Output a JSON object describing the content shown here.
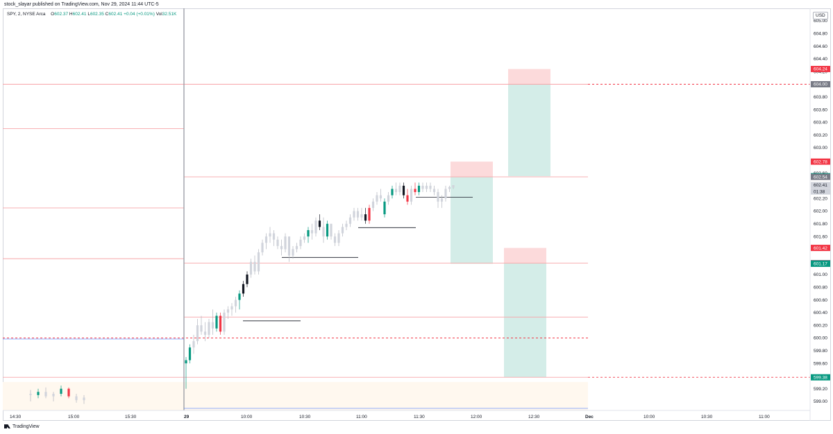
{
  "header": {
    "published_by": "stock_slayar published on TradingView.com, Nov 29, 2024 11:44 UTC-5"
  },
  "legend": {
    "symbol": "SPY, 2, NYSE Arca",
    "o_label": "O",
    "o_value": "602.37",
    "h_label": "H",
    "h_value": "602.41",
    "l_label": "L",
    "l_value": "602.35",
    "c_label": "C",
    "c_value": "602.41",
    "change": "+0.04 (+0.01%)",
    "vol_label": "Vol",
    "vol_value": "32.51K"
  },
  "currency": "USD",
  "footer": {
    "brand": "TradingView"
  },
  "colors": {
    "bull": "#089981",
    "bear": "#f23645",
    "neutral": "#d1d4dc",
    "level_line": "#f7a4a8",
    "target_fill": "#d4ede8",
    "stop_fill": "#fcdadb",
    "session_fill": "#fff8ef"
  },
  "chart_data": {
    "type": "candlestick",
    "symbol": "SPY",
    "interval": "2",
    "ylim": [
      598.9,
      605.0
    ],
    "x_ticks": [
      "14:30",
      "15:00",
      "15:30",
      "29",
      "10:00",
      "10:30",
      "11:00",
      "11:30",
      "12:00",
      "12:30",
      "Dec",
      "10:00",
      "10:30",
      "11:00"
    ],
    "y_ticks": [
      "599.00",
      "599.20",
      "599.40",
      "599.60",
      "599.80",
      "600.00",
      "600.20",
      "600.40",
      "600.60",
      "600.80",
      "601.00",
      "601.20",
      "601.40",
      "601.60",
      "601.80",
      "602.00",
      "602.20",
      "602.40",
      "602.60",
      "602.80",
      "603.00",
      "603.20",
      "603.40",
      "603.60",
      "603.80",
      "604.00",
      "604.20",
      "604.40",
      "604.60",
      "604.80",
      "605.00"
    ],
    "price_labels": [
      {
        "value": "604.24",
        "price": 604.24,
        "kind": "red"
      },
      {
        "value": "604.00",
        "price": 604.0,
        "kind": "grey"
      },
      {
        "value": "602.78",
        "price": 602.78,
        "kind": "red"
      },
      {
        "value": "602.55",
        "price": 602.55,
        "kind": "green"
      },
      {
        "value": "602.54",
        "price": 602.54,
        "kind": "grey"
      },
      {
        "value": "602.41",
        "price": 602.41,
        "kind": "current"
      },
      {
        "value": "01:38",
        "price": 602.31,
        "kind": "countdown"
      },
      {
        "value": "601.42",
        "price": 601.42,
        "kind": "red"
      },
      {
        "value": "601.18",
        "price": 601.18,
        "kind": "grey"
      },
      {
        "value": "601.17",
        "price": 601.17,
        "kind": "green"
      },
      {
        "value": "599.38",
        "price": 599.38,
        "kind": "green"
      }
    ],
    "levels": [
      {
        "price": 604.0,
        "style": "solid",
        "dashed_extension": true
      },
      {
        "price": 603.3,
        "style": "solid"
      },
      {
        "price": 602.54,
        "style": "solid"
      },
      {
        "price": 602.05,
        "style": "solid"
      },
      {
        "price": 601.25,
        "style": "solid"
      },
      {
        "price": 601.18,
        "style": "solid"
      },
      {
        "price": 600.33,
        "style": "solid"
      },
      {
        "price": 600.0,
        "style": "dashed"
      },
      {
        "price": 599.38,
        "style": "solid",
        "dashed_extension": true
      }
    ],
    "positions": [
      {
        "stop": 604.24,
        "entry": 604.0,
        "target": 602.55
      },
      {
        "stop": 602.78,
        "entry": 602.54,
        "target": 601.17
      },
      {
        "stop": 601.42,
        "entry": 601.18,
        "target": 599.38
      }
    ],
    "markers": [
      600.27,
      601.27,
      601.74,
      602.22
    ],
    "candles": [
      [
        599.6,
        599.7,
        599.2,
        599.65,
        "b"
      ],
      [
        599.65,
        599.9,
        599.6,
        599.85,
        "b"
      ],
      [
        599.85,
        600.05,
        599.75,
        599.95,
        "n"
      ],
      [
        599.95,
        600.3,
        599.9,
        600.2,
        "n"
      ],
      [
        600.2,
        600.35,
        600.05,
        600.1,
        "n"
      ],
      [
        600.1,
        600.25,
        599.95,
        600.05,
        "n"
      ],
      [
        600.05,
        600.3,
        600.0,
        600.25,
        "n"
      ],
      [
        600.25,
        600.45,
        600.05,
        600.15,
        "n"
      ],
      [
        600.15,
        600.4,
        600.1,
        600.35,
        "b"
      ],
      [
        600.35,
        600.4,
        600.05,
        600.1,
        "r"
      ],
      [
        600.1,
        600.45,
        600.05,
        600.4,
        "n"
      ],
      [
        600.4,
        600.5,
        600.3,
        600.45,
        "n"
      ],
      [
        600.45,
        600.55,
        600.35,
        600.5,
        "n"
      ],
      [
        600.5,
        600.65,
        600.4,
        600.6,
        "n"
      ],
      [
        600.6,
        600.75,
        600.45,
        600.7,
        "b"
      ],
      [
        600.7,
        600.9,
        600.65,
        600.85,
        "k"
      ],
      [
        600.85,
        601.05,
        600.8,
        601.0,
        "k"
      ],
      [
        601.0,
        601.25,
        600.95,
        601.2,
        "n"
      ],
      [
        601.2,
        601.3,
        601.0,
        601.05,
        "n"
      ],
      [
        601.05,
        601.4,
        601.0,
        601.35,
        "n"
      ],
      [
        601.35,
        601.55,
        601.3,
        601.5,
        "n"
      ],
      [
        601.5,
        601.65,
        601.4,
        601.6,
        "n"
      ],
      [
        601.6,
        601.75,
        601.5,
        601.65,
        "n"
      ],
      [
        601.65,
        601.7,
        601.45,
        601.55,
        "n"
      ],
      [
        601.55,
        601.6,
        601.4,
        601.45,
        "n"
      ],
      [
        601.45,
        601.55,
        601.3,
        601.4,
        "n"
      ],
      [
        601.4,
        601.65,
        601.35,
        601.6,
        "n"
      ],
      [
        601.6,
        601.6,
        601.2,
        601.3,
        "n"
      ],
      [
        601.3,
        601.45,
        601.25,
        601.4,
        "n"
      ],
      [
        601.4,
        601.5,
        601.35,
        601.45,
        "n"
      ],
      [
        601.45,
        601.6,
        601.4,
        601.55,
        "n"
      ],
      [
        601.55,
        601.65,
        601.5,
        601.6,
        "n"
      ],
      [
        601.6,
        601.75,
        601.5,
        601.7,
        "b"
      ],
      [
        601.7,
        601.8,
        601.55,
        601.65,
        "n"
      ],
      [
        601.65,
        601.9,
        601.6,
        601.85,
        "n"
      ],
      [
        601.85,
        601.95,
        601.7,
        601.75,
        "k"
      ],
      [
        601.75,
        601.9,
        601.5,
        601.6,
        "n"
      ],
      [
        601.6,
        601.85,
        601.55,
        601.8,
        "b"
      ],
      [
        601.8,
        601.8,
        601.55,
        601.6,
        "n"
      ],
      [
        601.6,
        601.65,
        601.45,
        601.5,
        "n"
      ],
      [
        601.5,
        601.7,
        601.45,
        601.65,
        "n"
      ],
      [
        601.65,
        601.8,
        601.6,
        601.75,
        "n"
      ],
      [
        601.75,
        601.85,
        601.7,
        601.8,
        "n"
      ],
      [
        601.8,
        601.95,
        601.75,
        601.9,
        "n"
      ],
      [
        601.9,
        602.05,
        601.85,
        602.0,
        "n"
      ],
      [
        602.0,
        602.05,
        601.85,
        601.9,
        "n"
      ],
      [
        601.9,
        602.05,
        601.85,
        601.95,
        "n"
      ],
      [
        601.95,
        602.05,
        601.8,
        601.85,
        "k"
      ],
      [
        601.85,
        602.1,
        601.8,
        602.05,
        "r"
      ],
      [
        602.05,
        602.2,
        602.0,
        602.15,
        "n"
      ],
      [
        602.15,
        602.3,
        602.1,
        602.25,
        "n"
      ],
      [
        602.25,
        602.35,
        602.15,
        602.2,
        "n"
      ],
      [
        601.95,
        602.2,
        601.9,
        602.15,
        "b"
      ],
      [
        602.15,
        602.3,
        602.1,
        602.25,
        "n"
      ],
      [
        602.25,
        602.4,
        602.2,
        602.35,
        "b"
      ],
      [
        602.35,
        602.45,
        602.25,
        602.3,
        "n"
      ],
      [
        602.3,
        602.45,
        602.25,
        602.4,
        "n"
      ],
      [
        602.4,
        602.45,
        602.2,
        602.25,
        "k"
      ],
      [
        602.25,
        602.35,
        602.1,
        602.15,
        "r"
      ],
      [
        602.15,
        602.4,
        602.1,
        602.35,
        "n"
      ],
      [
        602.35,
        602.45,
        602.25,
        602.3,
        "r"
      ],
      [
        602.3,
        602.45,
        602.25,
        602.4,
        "b"
      ],
      [
        602.4,
        602.45,
        602.3,
        602.35,
        "n"
      ],
      [
        602.35,
        602.45,
        602.3,
        602.4,
        "n"
      ],
      [
        602.4,
        602.45,
        602.3,
        602.35,
        "n"
      ],
      [
        602.35,
        602.4,
        602.25,
        602.3,
        "n"
      ],
      [
        602.3,
        602.35,
        602.05,
        602.15,
        "n"
      ],
      [
        602.15,
        602.25,
        602.05,
        602.2,
        "n"
      ],
      [
        602.2,
        602.4,
        602.15,
        602.35,
        "n"
      ],
      [
        602.35,
        602.4,
        602.3,
        602.38,
        "n"
      ],
      [
        602.37,
        602.41,
        602.35,
        602.41,
        "n"
      ]
    ],
    "prev_candles": [
      [
        599.12,
        599.18,
        599.0,
        599.1,
        "n"
      ],
      [
        599.1,
        599.2,
        599.05,
        599.15,
        "b"
      ],
      [
        599.15,
        599.22,
        599.05,
        599.08,
        "n"
      ],
      [
        599.08,
        599.15,
        599.0,
        599.12,
        "n"
      ],
      [
        599.12,
        599.25,
        599.08,
        599.2,
        "b"
      ],
      [
        599.2,
        599.22,
        599.05,
        599.08,
        "r"
      ],
      [
        599.08,
        599.12,
        598.98,
        599.02,
        "n"
      ],
      [
        599.02,
        599.1,
        598.96,
        599.06,
        "n"
      ]
    ]
  }
}
